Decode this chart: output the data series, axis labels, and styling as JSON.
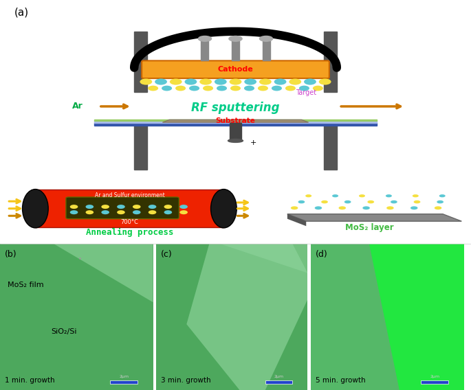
{
  "panel_label_a": "(a)",
  "panel_label_b": "(b)",
  "panel_label_c": "(c)",
  "panel_label_d": "(d)",
  "label_rf": "RF sputtering",
  "label_cathode": "Cathode",
  "label_target": "Target",
  "label_substrate": "Substrate",
  "label_ar": "Ar",
  "label_anneal": "Annealing process",
  "label_mos2_layer": "MoS₂ layer",
  "label_anneal_env": "Ar and Sulfur environment",
  "label_temp": "700°C",
  "label_b_top": "MoS₂ film",
  "label_b_bot": "SiO₂/Si",
  "label_b_growth": "1 min. growth",
  "label_c_growth": "3 min. growth",
  "label_d_growth": "5 min. growth",
  "bg_color": "#ffffff",
  "pillar_color": "#555555",
  "cathode_color": "#f5a020",
  "atom_yellow": "#f5e040",
  "atom_blue": "#5bc8d4",
  "rail_blue": "#3355bb",
  "sub_color": "#a09070",
  "tube_red": "#ee2200",
  "tube_black": "#1a1a1a",
  "green_panel_bg": "#5aad6a",
  "green_panel_light": "#7dc88a",
  "green_bright": "#10dd30",
  "green_d_bg": "#5aad6a",
  "anneal_green": "#00cc44",
  "mos2_label_green": "#44bb44",
  "rf_green": "#00cc88",
  "ar_green": "#00aa44"
}
